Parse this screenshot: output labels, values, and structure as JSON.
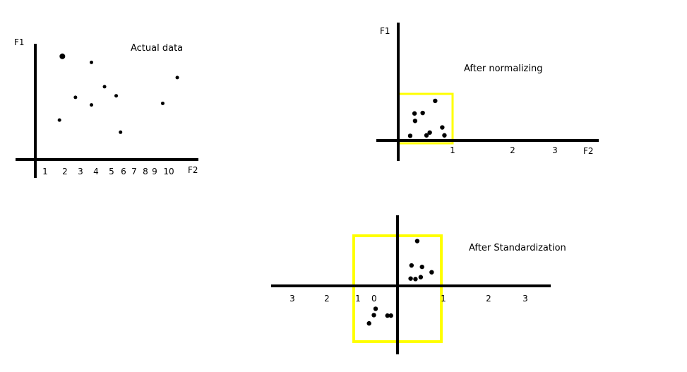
{
  "panels": [
    {
      "id": "actual",
      "title": "Actual data",
      "y_axis_label": "F1",
      "x_axis_label": "F2",
      "x_ticks": [
        "1",
        "2",
        "3",
        "4",
        "5",
        "6",
        "7",
        "8",
        "9",
        "10"
      ],
      "points": [
        {
          "x": 2.2,
          "y": 6.8,
          "big": true
        },
        {
          "x": 4.2,
          "y": 6.4
        },
        {
          "x": 5.1,
          "y": 4.8
        },
        {
          "x": 10.1,
          "y": 5.4
        },
        {
          "x": 3.1,
          "y": 4.1
        },
        {
          "x": 5.9,
          "y": 4.2
        },
        {
          "x": 4.2,
          "y": 3.6
        },
        {
          "x": 9.1,
          "y": 3.7
        },
        {
          "x": 2.0,
          "y": 2.6
        },
        {
          "x": 6.2,
          "y": 1.8
        }
      ]
    },
    {
      "id": "normalized",
      "title": "After normalizing",
      "y_axis_label": "F1",
      "x_axis_label": "F2",
      "x_ticks": [
        "1",
        "2",
        "3"
      ],
      "box_color": "#ffff00",
      "points": [
        {
          "x": 0.68,
          "y": 0.85
        },
        {
          "x": 0.3,
          "y": 0.58
        },
        {
          "x": 0.45,
          "y": 0.59
        },
        {
          "x": 0.31,
          "y": 0.42
        },
        {
          "x": 0.81,
          "y": 0.28
        },
        {
          "x": 0.58,
          "y": 0.17
        },
        {
          "x": 0.52,
          "y": 0.11
        },
        {
          "x": 0.85,
          "y": 0.11
        },
        {
          "x": 0.22,
          "y": 0.1
        }
      ]
    },
    {
      "id": "standardized",
      "title": "After  Standardization",
      "x_ticks_left": [
        "3",
        "2",
        "1"
      ],
      "zero_label": "0",
      "x_ticks_right": [
        "1",
        "2",
        "3"
      ],
      "box_color": "#ffff00",
      "points": [
        {
          "x": 0.45,
          "y": 0.92
        },
        {
          "x": 0.32,
          "y": 0.42
        },
        {
          "x": 0.56,
          "y": 0.39
        },
        {
          "x": 0.78,
          "y": 0.28
        },
        {
          "x": 0.3,
          "y": 0.15
        },
        {
          "x": 0.41,
          "y": 0.14
        },
        {
          "x": 0.53,
          "y": 0.18
        },
        {
          "x": -0.5,
          "y": -0.47
        },
        {
          "x": -0.54,
          "y": -0.6
        },
        {
          "x": -0.23,
          "y": -0.61
        },
        {
          "x": -0.15,
          "y": -0.61
        },
        {
          "x": -0.65,
          "y": -0.77
        }
      ]
    }
  ]
}
